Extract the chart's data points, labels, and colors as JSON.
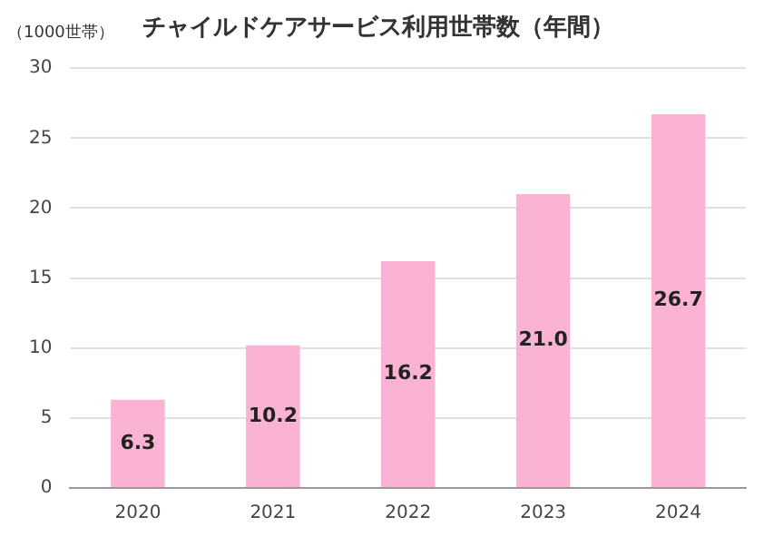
{
  "chart_data": {
    "type": "bar",
    "title": "チャイルドケアサービス利用世帯数（年間）",
    "ylabel": "（1000世帯）",
    "categories": [
      "2020",
      "2021",
      "2022",
      "2023",
      "2024"
    ],
    "values": [
      6.3,
      10.2,
      16.2,
      21.0,
      26.7
    ],
    "color": "#fbb3d4",
    "value_labels": [
      "6.3",
      "10.2",
      "16.2",
      "21.0",
      "26.7"
    ],
    "ylim": [
      0,
      30
    ],
    "yticks": [
      0,
      5,
      10,
      15,
      20,
      25,
      30
    ],
    "grid": "y"
  }
}
